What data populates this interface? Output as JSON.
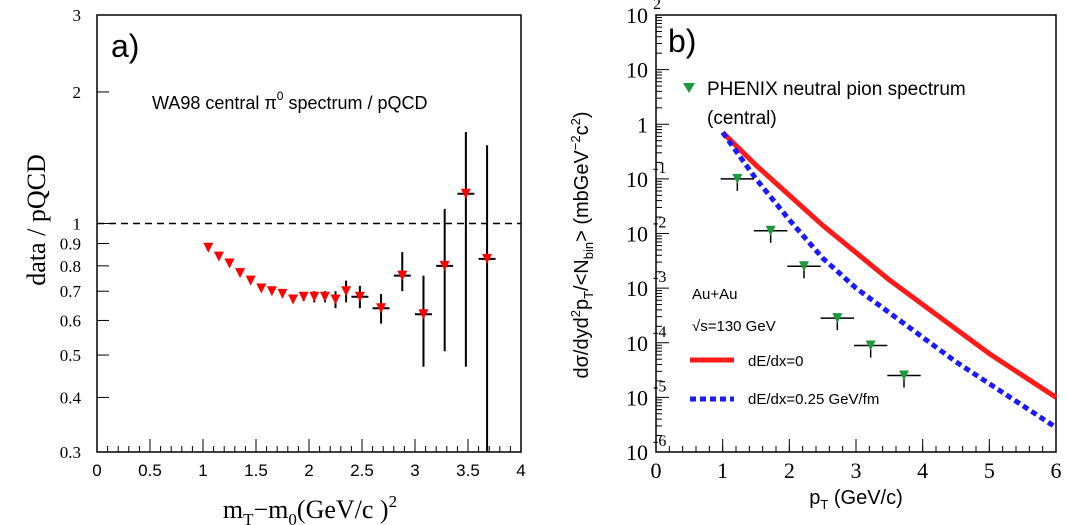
{
  "chart_data": [
    {
      "type": "scatter",
      "panel_label": "a)",
      "annotation": "WA98 central π⁰ spectrum / pQCD",
      "ylabel": "data  / pQCD",
      "xlabel": "m_T−m_0(GeV/c  )²",
      "xlim": [
        0,
        4
      ],
      "ylim": [
        0.3,
        3
      ],
      "y_scale": "log",
      "x_ticks": [
        "0",
        "0.5",
        "1",
        "1.5",
        "2",
        "2.5",
        "3",
        "3.5",
        "4"
      ],
      "y_ticks": [
        "0.3",
        "0.4",
        "0.5",
        "0.6",
        "0.7",
        "0.8",
        "0.9",
        "1",
        "2",
        "3"
      ],
      "reference_line": 1,
      "marker_color": "#ff0000",
      "series": [
        {
          "x": [
            1.05,
            1.15,
            1.25,
            1.35,
            1.45,
            1.55,
            1.65,
            1.75,
            1.85,
            1.95,
            2.05,
            2.15,
            2.25,
            2.35,
            2.48,
            2.68,
            2.88,
            3.08,
            3.28,
            3.48,
            3.68
          ],
          "y": [
            0.88,
            0.84,
            0.81,
            0.77,
            0.74,
            0.71,
            0.7,
            0.69,
            0.67,
            0.68,
            0.68,
            0.68,
            0.67,
            0.7,
            0.68,
            0.64,
            0.76,
            0.62,
            0.8,
            1.17,
            0.83
          ],
          "yerr_lo": [
            0.005,
            0.005,
            0.005,
            0.005,
            0.005,
            0.005,
            0.005,
            0.01,
            0.01,
            0.015,
            0.02,
            0.02,
            0.03,
            0.04,
            0.04,
            0.05,
            0.06,
            0.15,
            0.29,
            0.7,
            0.53
          ],
          "yerr_hi": [
            0.005,
            0.005,
            0.005,
            0.005,
            0.005,
            0.005,
            0.005,
            0.01,
            0.01,
            0.015,
            0.02,
            0.02,
            0.03,
            0.04,
            0.04,
            0.05,
            0.1,
            0.14,
            0.28,
            0.45,
            0.68
          ],
          "xerr": [
            0.0,
            0.0,
            0.0,
            0.0,
            0.0,
            0.0,
            0.0,
            0.0,
            0.0,
            0.0,
            0.0,
            0.0,
            0.0,
            0.0,
            0.08,
            0.08,
            0.08,
            0.08,
            0.08,
            0.08,
            0.08
          ]
        }
      ]
    },
    {
      "type": "line",
      "panel_label": "b)",
      "ylabel": "dσ/dyd²pT/<Nbin> (mbGeV⁻²c²)",
      "xlabel": "pT (GeV/c)",
      "xlim": [
        0,
        6
      ],
      "y_scale": "log",
      "ylim_exp": [
        -6,
        2
      ],
      "x_ticks": [
        "0",
        "1",
        "2",
        "3",
        "4",
        "5",
        "6"
      ],
      "y_tick_labels": [
        {
          "base": "10",
          "exp": "-6"
        },
        {
          "base": "10",
          "exp": "-5"
        },
        {
          "base": "10",
          "exp": "-4"
        },
        {
          "base": "10",
          "exp": "-3"
        },
        {
          "base": "10",
          "exp": "-2"
        },
        {
          "base": "10",
          "exp": "-1"
        },
        {
          "base": "1",
          "exp": ""
        },
        {
          "base": "10",
          "exp": ""
        },
        {
          "base": "10",
          "exp": "2"
        }
      ],
      "system_label": "Au+Au",
      "energy_label": "√s=130 GeV",
      "legend": [
        {
          "label": "PHENIX neutral pion spectrum",
          "sublabel": "(central)",
          "color": "#1a9a3a",
          "marker": "triangle-down"
        },
        {
          "label": "dE/dx=0",
          "color": "#ff1a1a",
          "style": "solid"
        },
        {
          "label": "dE/dx=0.25 GeV/fm",
          "color": "#1a1aff",
          "style": "dashed"
        }
      ],
      "series": [
        {
          "name": "dE/dx=0",
          "color": "#ff1a1a",
          "x": [
            1.0,
            1.5,
            2.0,
            2.5,
            3.0,
            3.5,
            4.0,
            4.5,
            5.0,
            5.5,
            6.0
          ],
          "log10_y": [
            -0.15,
            -0.75,
            -1.3,
            -1.85,
            -2.35,
            -2.85,
            -3.3,
            -3.75,
            -4.2,
            -4.6,
            -5.0
          ]
        },
        {
          "name": "dE/dx=0.25 GeV/fm",
          "color": "#1a1aff",
          "x": [
            1.0,
            1.5,
            2.0,
            2.5,
            3.0,
            3.5,
            4.0,
            4.5,
            5.0,
            5.5,
            6.0
          ],
          "log10_y": [
            -0.15,
            -1.0,
            -1.75,
            -2.45,
            -3.0,
            -3.45,
            -3.9,
            -4.35,
            -4.75,
            -5.15,
            -5.55
          ]
        },
        {
          "name": "PHENIX neutral pion spectrum",
          "color": "#1a9a3a",
          "x": [
            1.22,
            1.72,
            2.22,
            2.72,
            3.22,
            3.72
          ],
          "log10_y": [
            -1.0,
            -1.95,
            -2.6,
            -3.55,
            -4.05,
            -4.6
          ],
          "xerr": 0.25
        }
      ]
    }
  ]
}
